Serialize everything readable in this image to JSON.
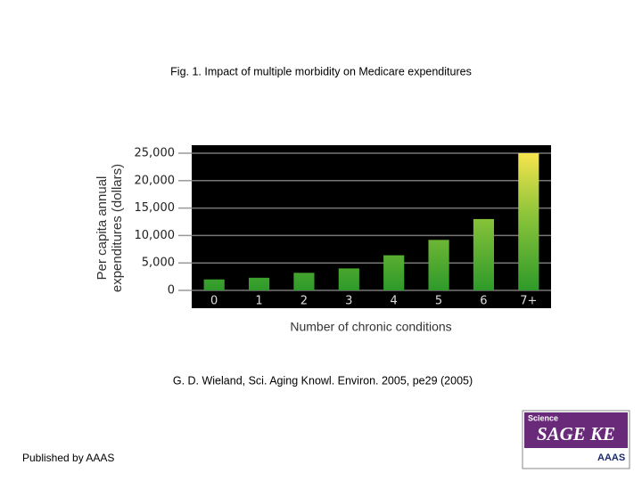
{
  "chart_data": {
    "type": "bar",
    "title": "Fig. 1. Impact of multiple morbidity on Medicare expenditures",
    "ylabel": [
      "Per capita annual",
      "expenditures (dollars)"
    ],
    "xlabel": "Number of chronic conditions",
    "categories": [
      "0",
      "1",
      "2",
      "3",
      "4",
      "5",
      "6",
      "7+"
    ],
    "values": [
      2000,
      2300,
      3200,
      4000,
      6400,
      9200,
      13000,
      25000
    ],
    "color": [
      "#2e9a2a",
      "#f6e44c"
    ],
    "ylim": [
      0,
      25000
    ],
    "yticks": [
      0,
      {
        "value": 5000,
        "label": "5,000"
      },
      {
        "value": 10000,
        "label": "10,000"
      },
      {
        "value": 15000,
        "label": "15,000"
      },
      {
        "value": 20000,
        "label": "20,000"
      },
      {
        "value": 25000,
        "label": "25,000"
      }
    ],
    "grid": true
  },
  "citation": "G. D. Wieland, Sci. Aging Knowl. Environ. 2005, pe29 (2005)",
  "footer": "Published by AAAS",
  "logo": {
    "top": "Science",
    "main": "SAGE KE",
    "bottom": "AAAS"
  }
}
